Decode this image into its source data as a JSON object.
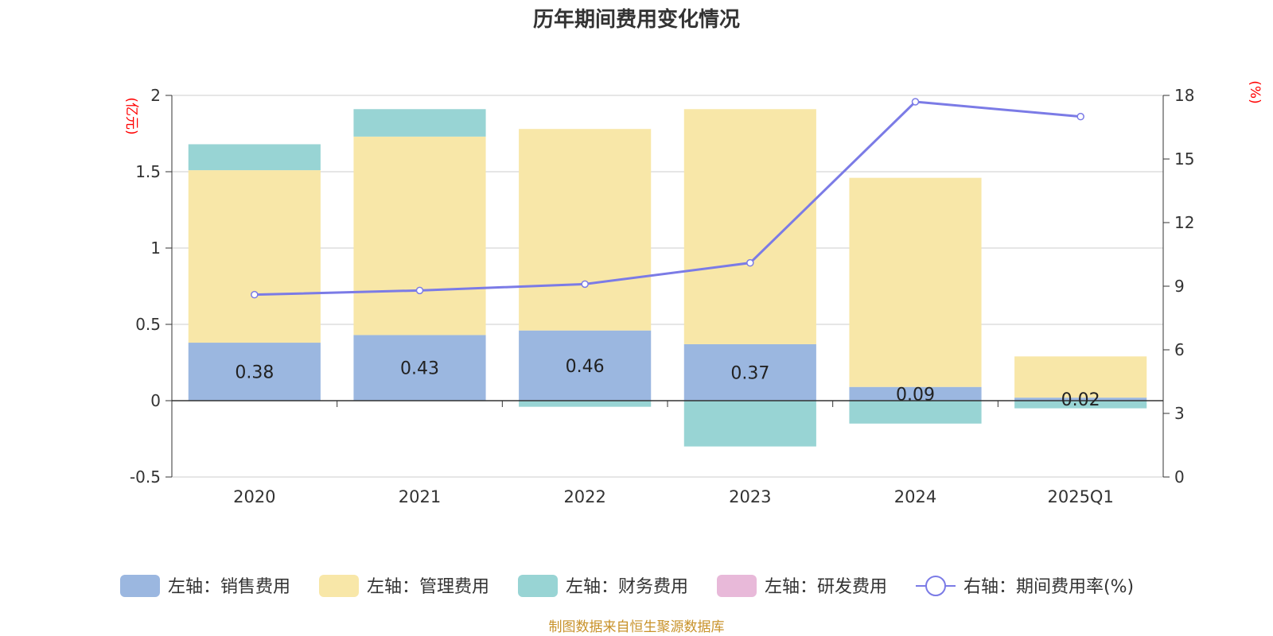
{
  "chart_data": {
    "type": "bar",
    "title": "历年期间费用变化情况",
    "categories": [
      "2020",
      "2021",
      "2022",
      "2023",
      "2024",
      "2025Q1"
    ],
    "left_axis": {
      "unit_label": "(亿元)",
      "ylim": [
        -0.5,
        2
      ],
      "ticks": [
        -0.5,
        0,
        0.5,
        1,
        1.5,
        2
      ],
      "tick_labels": [
        "-0.5",
        "0",
        "0.5",
        "1",
        "1.5",
        "2"
      ]
    },
    "right_axis": {
      "unit_label": "(%)",
      "ylim": [
        0,
        18
      ],
      "ticks": [
        0,
        3,
        6,
        9,
        12,
        15,
        18
      ],
      "tick_labels": [
        "0",
        "3",
        "6",
        "9",
        "12",
        "15",
        "18"
      ]
    },
    "grid": true,
    "stacked": true,
    "series": [
      {
        "name": "左轴：销售费用",
        "axis": "left",
        "type": "bar",
        "color": "#9bb7e0",
        "values": [
          0.38,
          0.43,
          0.46,
          0.37,
          0.09,
          0.02
        ],
        "labels": [
          "0.38",
          "0.43",
          "0.46",
          "0.37",
          "0.09",
          "0.02"
        ]
      },
      {
        "name": "左轴：管理费用",
        "axis": "left",
        "type": "bar",
        "color": "#f8e7a8",
        "values": [
          1.13,
          1.3,
          1.32,
          1.54,
          1.37,
          0.27
        ]
      },
      {
        "name": "左轴：财务费用",
        "axis": "left",
        "type": "bar",
        "color": "#98d4d4",
        "values": [
          0.17,
          0.18,
          -0.04,
          -0.3,
          -0.15,
          -0.05
        ]
      },
      {
        "name": "左轴：研发费用",
        "axis": "left",
        "type": "bar",
        "color": "#e8b9d9",
        "values": [
          0,
          0,
          0,
          0,
          0,
          0
        ]
      },
      {
        "name": "右轴：期间费用率(%)",
        "axis": "right",
        "type": "line",
        "color": "#7b7be6",
        "values": [
          8.6,
          8.8,
          9.1,
          10.1,
          17.7,
          17.0
        ]
      }
    ],
    "legend_position": "bottom",
    "source": "制图数据来自恒生聚源数据库"
  }
}
